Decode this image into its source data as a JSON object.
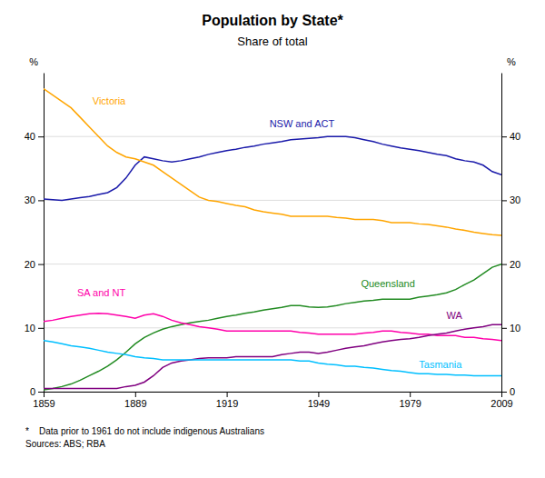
{
  "chart_data": {
    "type": "line",
    "title": "Population by State*",
    "subtitle": "Share of total",
    "notes": [
      "*    Data prior to 1961 do not include indigenous Australians",
      "Sources: ABS; RBA"
    ],
    "ylabel": "%",
    "xlim": [
      1859,
      2009
    ],
    "xticks": [
      1859,
      1889,
      1919,
      1949,
      1979,
      2009
    ],
    "ylim": [
      0,
      50
    ],
    "yticks": [
      0,
      10,
      20,
      30,
      40
    ],
    "grid": true,
    "x": [
      1859,
      1862,
      1865,
      1868,
      1871,
      1874,
      1877,
      1880,
      1883,
      1886,
      1889,
      1892,
      1895,
      1898,
      1901,
      1904,
      1907,
      1910,
      1913,
      1916,
      1919,
      1922,
      1925,
      1928,
      1931,
      1934,
      1937,
      1940,
      1943,
      1946,
      1949,
      1952,
      1955,
      1958,
      1961,
      1964,
      1967,
      1970,
      1973,
      1976,
      1979,
      1982,
      1985,
      1988,
      1991,
      1994,
      1997,
      2000,
      2003,
      2006,
      2009
    ],
    "series": [
      {
        "name": "NSW and ACT",
        "color": "#1a1aaa",
        "label_x": 1933,
        "label_y": 42.0,
        "values": [
          30.2,
          30.1,
          30.0,
          30.2,
          30.4,
          30.6,
          30.9,
          31.2,
          32.0,
          33.5,
          35.5,
          36.8,
          36.5,
          36.2,
          36.0,
          36.2,
          36.5,
          36.8,
          37.2,
          37.5,
          37.8,
          38.0,
          38.3,
          38.5,
          38.8,
          39.0,
          39.2,
          39.5,
          39.6,
          39.7,
          39.8,
          40.0,
          40.0,
          40.0,
          39.8,
          39.5,
          39.2,
          38.8,
          38.5,
          38.2,
          38.0,
          37.8,
          37.5,
          37.2,
          37.0,
          36.5,
          36.2,
          36.0,
          35.5,
          34.5,
          34.0
        ]
      },
      {
        "name": "Victoria",
        "color": "#FFA500",
        "label_x": 1875,
        "label_y": 45.5,
        "values": [
          47.5,
          46.5,
          45.5,
          44.5,
          43.0,
          41.5,
          40.0,
          38.5,
          37.5,
          36.8,
          36.5,
          36.0,
          35.5,
          34.5,
          33.5,
          32.5,
          31.5,
          30.5,
          30.0,
          29.8,
          29.5,
          29.2,
          29.0,
          28.5,
          28.2,
          28.0,
          27.8,
          27.5,
          27.5,
          27.5,
          27.5,
          27.5,
          27.3,
          27.2,
          27.0,
          27.0,
          27.0,
          26.8,
          26.5,
          26.5,
          26.5,
          26.3,
          26.2,
          26.0,
          25.8,
          25.5,
          25.3,
          25.0,
          24.8,
          24.6,
          24.5
        ]
      },
      {
        "name": "Queensland",
        "color": "#228B22",
        "label_x": 1963,
        "label_y": 17.0,
        "values": [
          0.3,
          0.5,
          0.8,
          1.2,
          1.8,
          2.5,
          3.2,
          4.0,
          5.0,
          6.2,
          7.5,
          8.5,
          9.2,
          9.8,
          10.2,
          10.5,
          10.8,
          11.0,
          11.2,
          11.5,
          11.8,
          12.0,
          12.3,
          12.5,
          12.8,
          13.0,
          13.2,
          13.5,
          13.5,
          13.3,
          13.2,
          13.3,
          13.5,
          13.8,
          14.0,
          14.2,
          14.3,
          14.5,
          14.5,
          14.5,
          14.5,
          14.8,
          15.0,
          15.2,
          15.5,
          16.0,
          16.8,
          17.5,
          18.5,
          19.5,
          20.0
        ]
      },
      {
        "name": "SA and NT",
        "color": "#FF00AA",
        "label_x": 1870,
        "label_y": 15.5,
        "values": [
          11.0,
          11.2,
          11.5,
          11.8,
          12.0,
          12.2,
          12.3,
          12.2,
          12.0,
          11.8,
          11.5,
          12.0,
          12.2,
          11.8,
          11.2,
          10.8,
          10.5,
          10.2,
          10.0,
          9.8,
          9.5,
          9.5,
          9.5,
          9.5,
          9.5,
          9.5,
          9.5,
          9.5,
          9.3,
          9.2,
          9.0,
          9.0,
          9.0,
          9.0,
          9.0,
          9.2,
          9.3,
          9.5,
          9.5,
          9.3,
          9.2,
          9.0,
          9.0,
          8.8,
          8.8,
          8.8,
          8.5,
          8.5,
          8.3,
          8.2,
          8.0
        ]
      },
      {
        "name": "WA",
        "color": "#800080",
        "label_x": 1991,
        "label_y": 12.0,
        "values": [
          0.5,
          0.5,
          0.5,
          0.5,
          0.5,
          0.5,
          0.5,
          0.5,
          0.5,
          0.8,
          1.0,
          1.5,
          2.5,
          3.8,
          4.5,
          4.8,
          5.0,
          5.2,
          5.3,
          5.3,
          5.3,
          5.5,
          5.5,
          5.5,
          5.5,
          5.5,
          5.8,
          6.0,
          6.2,
          6.2,
          6.0,
          6.2,
          6.5,
          6.8,
          7.0,
          7.2,
          7.5,
          7.8,
          8.0,
          8.2,
          8.3,
          8.5,
          8.8,
          9.0,
          9.2,
          9.5,
          9.8,
          10.0,
          10.2,
          10.5,
          10.5
        ]
      },
      {
        "name": "Tasmania",
        "color": "#00BFFF",
        "label_x": 1982,
        "label_y": 4.2,
        "values": [
          8.0,
          7.8,
          7.5,
          7.2,
          7.0,
          6.8,
          6.5,
          6.2,
          6.0,
          5.8,
          5.5,
          5.3,
          5.2,
          5.0,
          5.0,
          5.0,
          5.0,
          5.0,
          5.0,
          5.0,
          5.0,
          5.0,
          5.0,
          5.0,
          5.0,
          5.0,
          5.0,
          5.0,
          4.8,
          4.8,
          4.5,
          4.3,
          4.2,
          4.0,
          4.0,
          3.8,
          3.7,
          3.5,
          3.3,
          3.2,
          3.0,
          2.8,
          2.8,
          2.7,
          2.7,
          2.6,
          2.6,
          2.5,
          2.5,
          2.5,
          2.5
        ]
      }
    ]
  }
}
